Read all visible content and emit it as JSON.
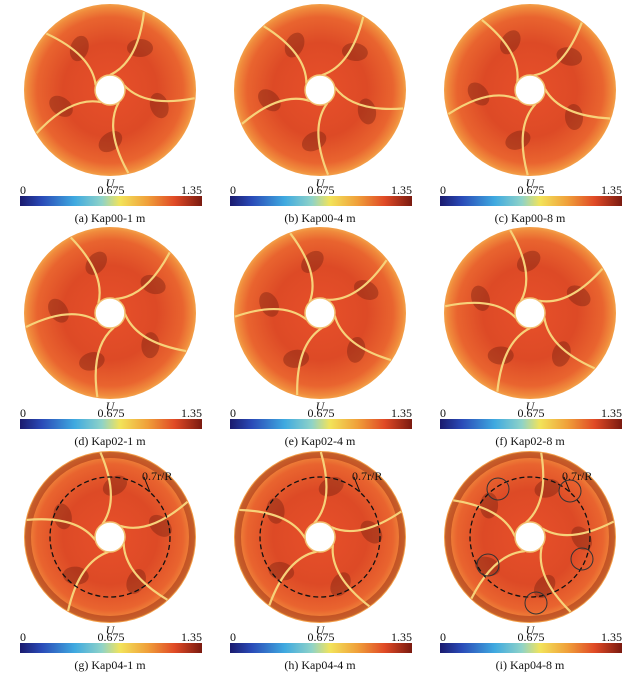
{
  "panels": [
    {
      "label": "(a) Kap00-1 m",
      "colorbar": {
        "title": "U",
        "ticks": [
          "0",
          "0.675",
          "1.35"
        ]
      }
    },
    {
      "label": "(b) Kap00-4 m",
      "colorbar": {
        "title": "U",
        "ticks": [
          "0",
          "0.675",
          "1.35"
        ]
      }
    },
    {
      "label": "(c) Kap00-8 m",
      "colorbar": {
        "title": "U",
        "ticks": [
          "0",
          "0.675",
          "1.35"
        ]
      }
    },
    {
      "label": "(d) Kap02-1 m",
      "colorbar": {
        "title": "U",
        "ticks": [
          "0",
          "0.675",
          "1.35"
        ]
      }
    },
    {
      "label": "(e) Kap02-4 m",
      "colorbar": {
        "title": "U",
        "ticks": [
          "0",
          "0.675",
          "1.35"
        ]
      }
    },
    {
      "label": "(f) Kap02-8 m",
      "colorbar": {
        "title": "U",
        "ticks": [
          "0",
          "0.675",
          "1.35"
        ]
      }
    },
    {
      "label": "(g) Kap04-1 m",
      "annotation": "0.7r/R",
      "colorbar": {
        "title": "U",
        "ticks": [
          "0",
          "0.675",
          "1.35"
        ]
      }
    },
    {
      "label": "(h) Kap04-4 m",
      "annotation": "0.7r/R",
      "colorbar": {
        "title": "U",
        "ticks": [
          "0",
          "0.675",
          "1.35"
        ]
      }
    },
    {
      "label": "(i) Kap04-8 m",
      "annotation": "0.7r/R",
      "colorbar": {
        "title": "U",
        "ticks": [
          "0",
          "0.675",
          "1.35"
        ]
      }
    }
  ]
}
